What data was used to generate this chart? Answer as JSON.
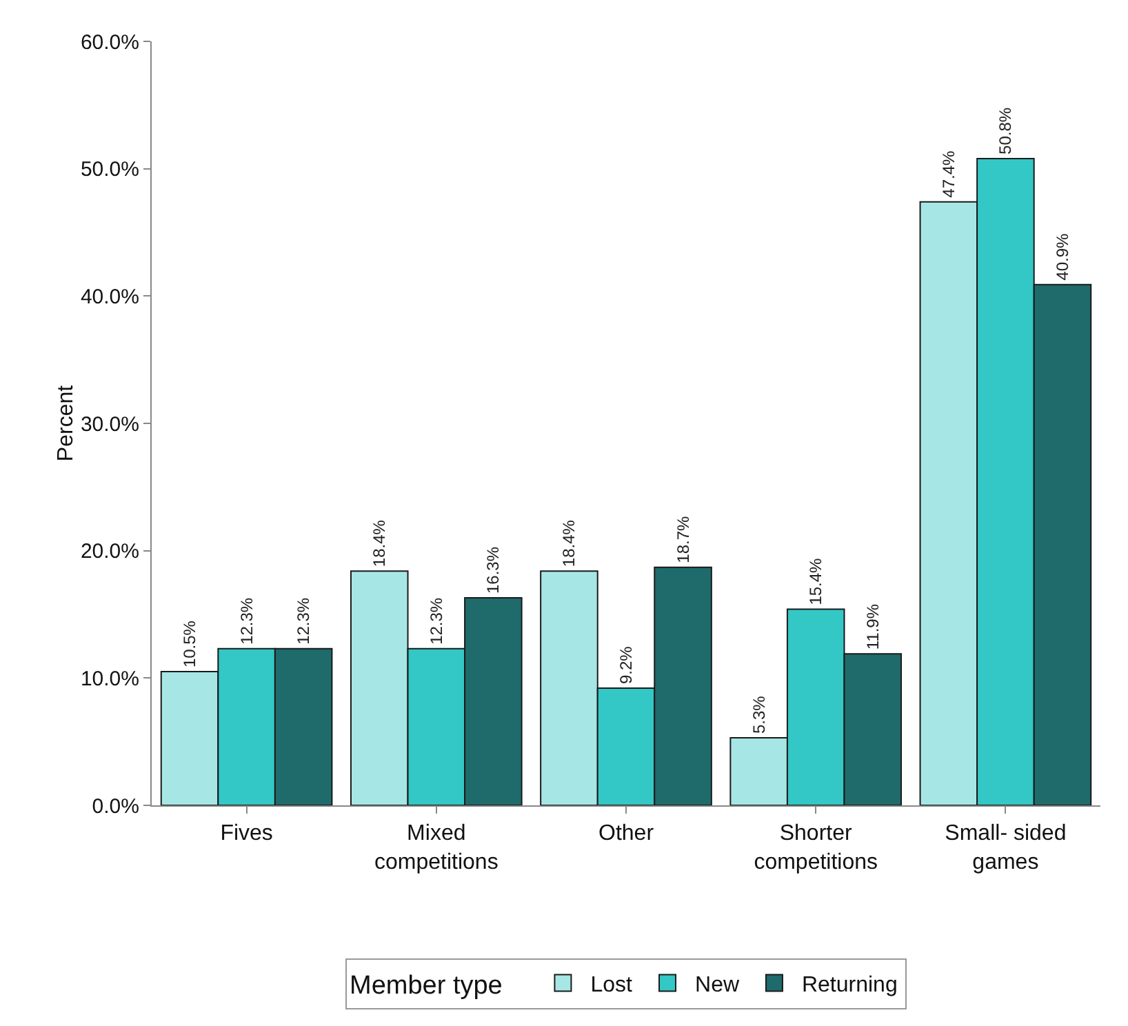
{
  "chart_data": {
    "type": "bar",
    "ylabel": "Percent",
    "legend_title": "Member type",
    "legend": "bottom",
    "grid": false,
    "categories": [
      "Fives",
      "Mixed competitions",
      "Other",
      "Shorter competitions",
      "Small- sided games"
    ],
    "ylim": [
      0,
      60
    ],
    "yticks": [
      {
        "value": 0,
        "label": "0.0%"
      },
      {
        "value": 10,
        "label": "10.0%"
      },
      {
        "value": 20,
        "label": "20.0%"
      },
      {
        "value": 30,
        "label": "30.0%"
      },
      {
        "value": 40,
        "label": "40.0%"
      },
      {
        "value": 50,
        "label": "50.0%"
      },
      {
        "value": 60,
        "label": "60.0%"
      }
    ],
    "series": [
      {
        "name": "Lost",
        "color": "#a6e7e5",
        "values": [
          10.5,
          18.4,
          18.4,
          5.3,
          47.4
        ],
        "value_labels": [
          "10.5%",
          "18.4%",
          "18.4%",
          "5.3%",
          "47.4%"
        ]
      },
      {
        "name": "New",
        "color": "#33c7c6",
        "values": [
          12.3,
          12.3,
          9.2,
          15.4,
          50.8
        ],
        "value_labels": [
          "12.3%",
          "12.3%",
          "9.2%",
          "15.4%",
          "50.8%"
        ]
      },
      {
        "name": "Returning",
        "color": "#1f6b6c",
        "values": [
          12.3,
          16.3,
          18.7,
          11.9,
          40.9
        ],
        "value_labels": [
          "12.3%",
          "16.3%",
          "18.7%",
          "11.9%",
          "40.9%"
        ]
      }
    ]
  }
}
